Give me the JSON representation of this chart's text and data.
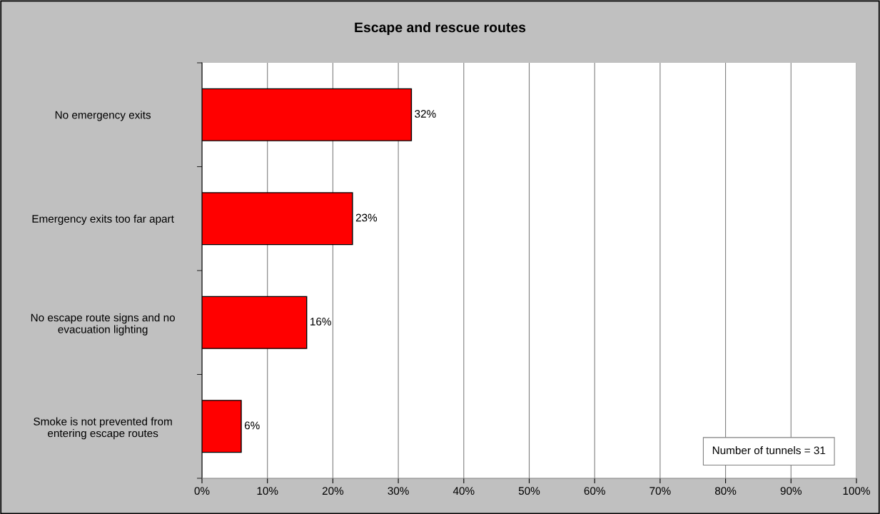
{
  "chart_data": {
    "type": "bar",
    "orientation": "horizontal",
    "title": "Escape and rescue routes",
    "categories": [
      "No emergency exits",
      "Emergency exits too far apart",
      "No escape route signs and no\nevacuation lighting",
      "Smoke is not prevented from\nentering escape routes"
    ],
    "values": [
      32,
      23,
      16,
      6
    ],
    "color": "#ff0000",
    "value_labels": [
      "32%",
      "23%",
      "16%",
      "6%"
    ],
    "xlim": [
      0,
      100
    ],
    "xticks": [
      {
        "value": 0,
        "label": "0%"
      },
      {
        "value": 10,
        "label": "10%"
      },
      {
        "value": 20,
        "label": "20%"
      },
      {
        "value": 30,
        "label": "30%"
      },
      {
        "value": 40,
        "label": "40%"
      },
      {
        "value": 50,
        "label": "50%"
      },
      {
        "value": 60,
        "label": "60%"
      },
      {
        "value": 70,
        "label": "70%"
      },
      {
        "value": 80,
        "label": "80%"
      },
      {
        "value": 90,
        "label": "90%"
      },
      {
        "value": 100,
        "label": "100%"
      }
    ],
    "grid": "x",
    "legend": false,
    "annotations": [
      "Number of tunnels = 31"
    ]
  }
}
